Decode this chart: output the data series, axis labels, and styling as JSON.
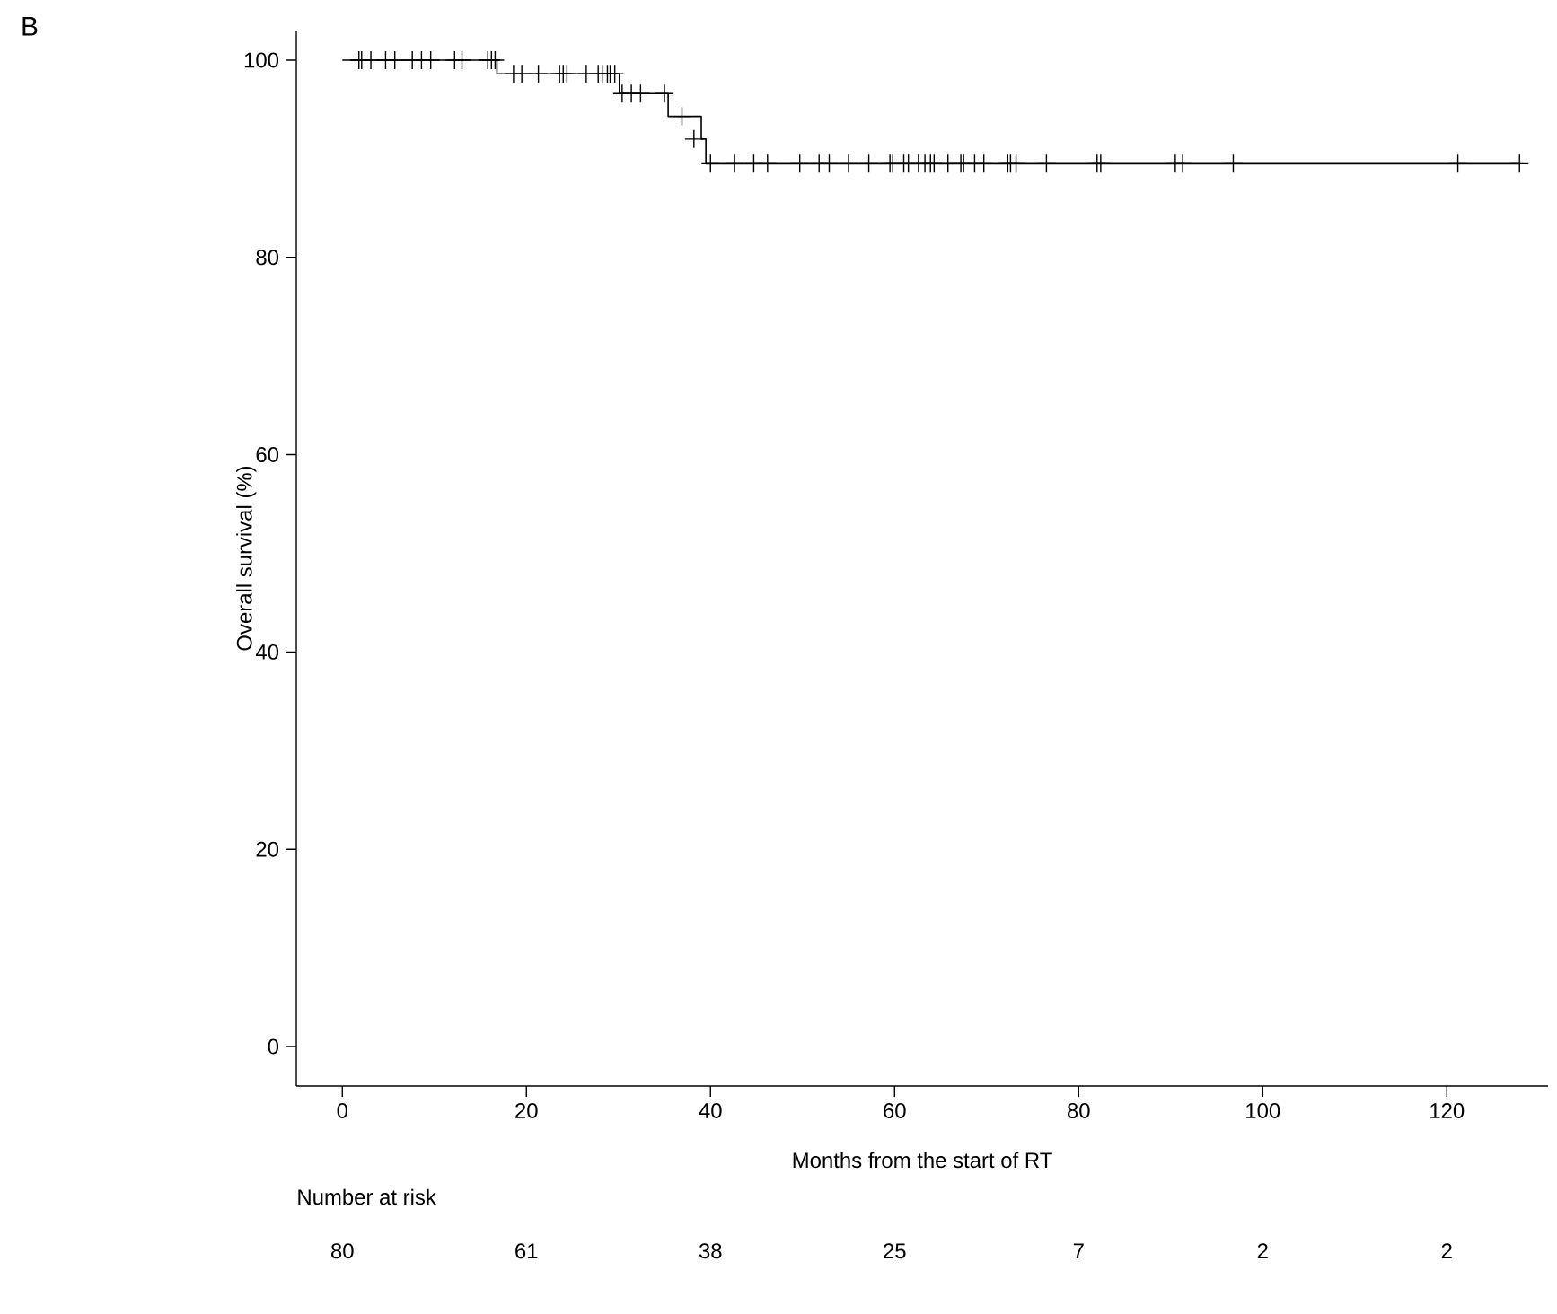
{
  "chart_data": {
    "type": "step",
    "xlabel": "Months from the start of RT",
    "ylabel": "Overall survival (%)",
    "series": [
      {
        "color": "#000000",
        "x": [
          0,
          16.8,
          30.1,
          35.4,
          39.0,
          39.5,
          127.9
        ],
        "values": [
          100,
          98.6,
          96.6,
          94.3,
          92.0,
          89.5,
          89.5
        ]
      },
      {
        "type": "scatter",
        "marker": "cross",
        "color": "#000000",
        "x": [
          1.8,
          2.1,
          3.1,
          4.7,
          5.7,
          7.6,
          8.6,
          9.6,
          12.2,
          13.0,
          15.8,
          16.2,
          16.6,
          18.6,
          19.5,
          21.3,
          23.6,
          24.0,
          24.4,
          26.5,
          27.8,
          28.3,
          28.8,
          29.1,
          29.6,
          30.4,
          31.4,
          32.4,
          35.0,
          36.9,
          38.2,
          40.0,
          42.6,
          44.7,
          46.2,
          49.7,
          51.8,
          52.9,
          55.0,
          57.2,
          59.5,
          59.8,
          61.0,
          61.5,
          62.6,
          63.3,
          63.9,
          64.3,
          65.8,
          67.2,
          67.5,
          68.7,
          69.7,
          72.3,
          72.6,
          73.2,
          76.5,
          82.0,
          82.4,
          90.5,
          91.3,
          96.8,
          121.2,
          127.9
        ],
        "values": [
          100,
          100,
          100,
          100,
          100,
          100,
          100,
          100,
          100,
          100,
          100,
          100,
          100,
          98.6,
          98.6,
          98.6,
          98.6,
          98.6,
          98.6,
          98.6,
          98.6,
          98.6,
          98.6,
          98.6,
          98.6,
          96.6,
          96.6,
          96.6,
          96.6,
          94.3,
          92.0,
          89.5,
          89.5,
          89.5,
          89.5,
          89.5,
          89.5,
          89.5,
          89.5,
          89.5,
          89.5,
          89.5,
          89.5,
          89.5,
          89.5,
          89.5,
          89.5,
          89.5,
          89.5,
          89.5,
          89.5,
          89.5,
          89.5,
          89.5,
          89.5,
          89.5,
          89.5,
          89.5,
          89.5,
          89.5,
          89.5,
          89.5,
          89.5,
          89.5
        ]
      }
    ],
    "xlim": [
      -5,
      131
    ],
    "ylim": [
      -4,
      103
    ],
    "xticks": [
      0,
      20,
      40,
      60,
      80,
      100,
      120
    ],
    "yticks": [
      0,
      20,
      40,
      60,
      80,
      100
    ],
    "grid": false,
    "annotations": [
      "B",
      "Number at risk",
      "80",
      "61",
      "38",
      "25",
      "7",
      "2",
      "2"
    ]
  }
}
